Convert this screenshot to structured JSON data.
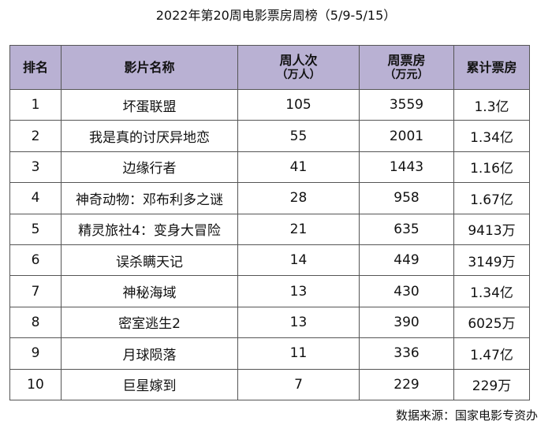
{
  "title": "2022年第20周电影票房周榜（5/9-5/15）",
  "headers": {
    "rank": "排名",
    "name": "影片名称",
    "visits": "周人次",
    "visits_unit": "（万人）",
    "box": "周票房",
    "box_unit": "（万元）",
    "total": "累计票房"
  },
  "rows": [
    {
      "rank": "1",
      "name": "坏蛋联盟",
      "visits": "105",
      "box": "3559",
      "total": "1.3亿"
    },
    {
      "rank": "2",
      "name": "我是真的讨厌异地恋",
      "visits": "55",
      "box": "2001",
      "total": "1.34亿"
    },
    {
      "rank": "3",
      "name": "边缘行者",
      "visits": "41",
      "box": "1443",
      "total": "1.16亿"
    },
    {
      "rank": "4",
      "name": "神奇动物：邓布利多之谜",
      "visits": "28",
      "box": "958",
      "total": "1.67亿"
    },
    {
      "rank": "5",
      "name": "精灵旅社4：变身大冒险",
      "visits": "21",
      "box": "635",
      "total": "9413万"
    },
    {
      "rank": "6",
      "name": "误杀瞒天记",
      "visits": "14",
      "box": "449",
      "total": "3149万"
    },
    {
      "rank": "7",
      "name": "神秘海域",
      "visits": "13",
      "box": "430",
      "total": "1.34亿"
    },
    {
      "rank": "8",
      "name": "密室逃生2",
      "visits": "13",
      "box": "390",
      "total": "6025万"
    },
    {
      "rank": "9",
      "name": "月球陨落",
      "visits": "11",
      "box": "336",
      "total": "1.47亿"
    },
    {
      "rank": "10",
      "name": "巨星嫁到",
      "visits": "7",
      "box": "229",
      "total": "229万"
    }
  ],
  "source": "数据来源：国家电影专资办",
  "colors": {
    "header_bg": "#b9b1d3",
    "border": "#555555"
  },
  "chart_data": {
    "type": "table",
    "title": "2022年第20周电影票房周榜（5/9-5/15）",
    "columns": [
      "排名",
      "影片名称",
      "周人次（万人）",
      "周票房（万元）",
      "累计票房"
    ],
    "rows": [
      [
        1,
        "坏蛋联盟",
        105,
        3559,
        "1.3亿"
      ],
      [
        2,
        "我是真的讨厌异地恋",
        55,
        2001,
        "1.34亿"
      ],
      [
        3,
        "边缘行者",
        41,
        1443,
        "1.16亿"
      ],
      [
        4,
        "神奇动物：邓布利多之谜",
        28,
        958,
        "1.67亿"
      ],
      [
        5,
        "精灵旅社4：变身大冒险",
        21,
        635,
        "9413万"
      ],
      [
        6,
        "误杀瞒天记",
        14,
        449,
        "3149万"
      ],
      [
        7,
        "神秘海域",
        13,
        430,
        "1.34亿"
      ],
      [
        8,
        "密室逃生2",
        13,
        390,
        "6025万"
      ],
      [
        9,
        "月球陨落",
        11,
        336,
        "1.47亿"
      ],
      [
        10,
        "巨星嫁到",
        7,
        229,
        "229万"
      ]
    ]
  }
}
